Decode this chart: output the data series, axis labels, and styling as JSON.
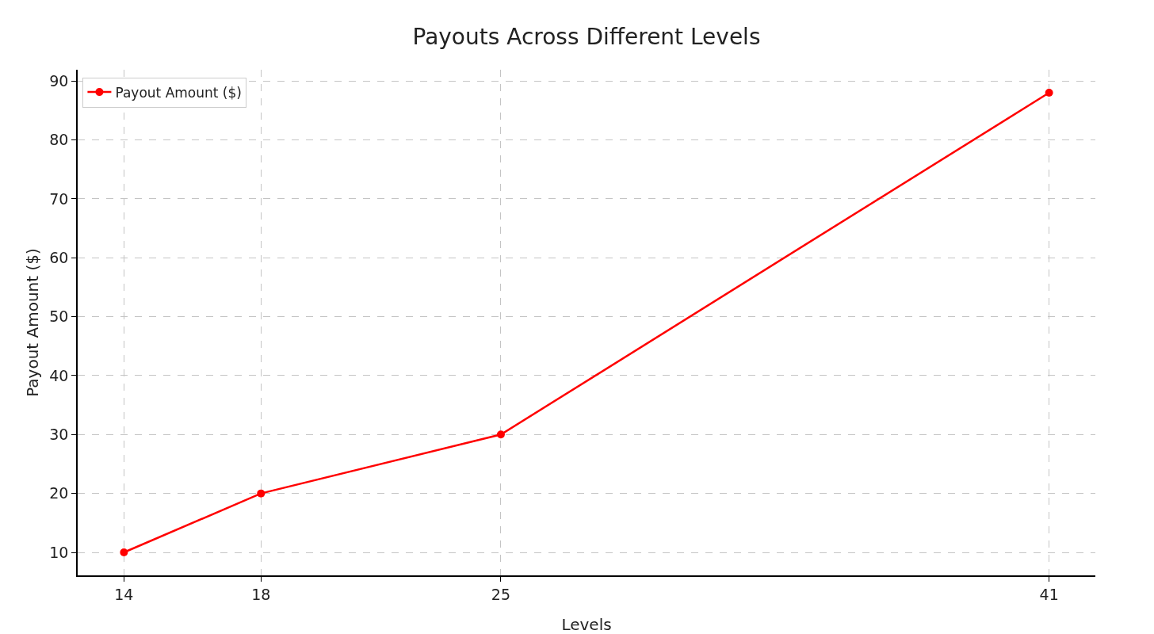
{
  "chart_data": {
    "type": "line",
    "title": "Payouts Across Different Levels",
    "xlabel": "Levels",
    "ylabel": "Payout Amount ($)",
    "x": [
      14,
      18,
      25,
      41
    ],
    "series": [
      {
        "name": "Payout Amount ($)",
        "color": "#ff0000",
        "values": [
          10,
          20,
          30,
          88
        ]
      }
    ],
    "xlim": [
      12.65,
      42.35
    ],
    "xticks": [
      14,
      18,
      25,
      41
    ],
    "ylim": [
      6.1,
      91.9
    ],
    "yticks": [
      10,
      20,
      30,
      40,
      50,
      60,
      70,
      80,
      90
    ],
    "grid": true,
    "legend": "top left",
    "marker": "circle",
    "line_style": "solid"
  }
}
